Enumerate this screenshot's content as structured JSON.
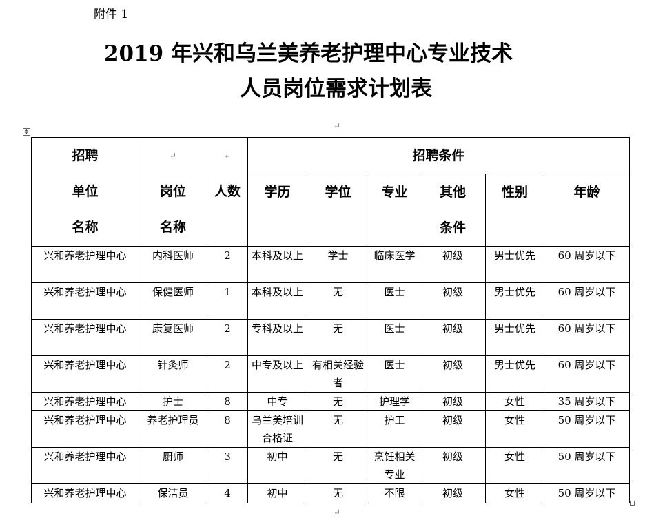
{
  "attachment_label": "附件 1",
  "title_line1": "2019 年兴和乌兰美养老护理中心专业技术",
  "title_line2": "人员岗位需求计划表",
  "header": {
    "unit": [
      "招聘",
      "单位",
      "名称"
    ],
    "position": [
      "岗位",
      "名称"
    ],
    "count": "人数",
    "conditions": "招聘条件",
    "education": "学历",
    "degree": "学位",
    "major": "专业",
    "other": [
      "其他",
      "条件"
    ],
    "gender": "性别",
    "age": "年龄"
  },
  "rows": [
    [
      "兴和养老护理中心",
      "内科医师",
      "2",
      "本科及以上",
      "学士",
      "临床医学",
      "初级",
      "男士优先",
      "60 周岁以下"
    ],
    [
      "兴和养老护理中心",
      "保健医师",
      "1",
      "本科及以上",
      "无",
      "医士",
      "初级",
      "男士优先",
      "60 周岁以下"
    ],
    [
      "兴和养老护理中心",
      "康复医师",
      "2",
      "专科及以上",
      "无",
      "医士",
      "初级",
      "男士优先",
      "60 周岁以下"
    ],
    [
      "兴和养老护理中心",
      "针灸师",
      "2",
      "中专及以上",
      "有相关经验者",
      "医士",
      "初级",
      "男士优先",
      "60 周岁以下"
    ],
    [
      "兴和养老护理中心",
      "护士",
      "8",
      "中专",
      "无",
      "护理学",
      "初级",
      "女性",
      "35 周岁以下"
    ],
    [
      "兴和养老护理中心",
      "养老护理员",
      "8",
      "乌兰美培训合格证",
      "无",
      "护工",
      "初级",
      "女性",
      "50 周岁以下"
    ],
    [
      "兴和养老护理中心",
      "厨师",
      "3",
      "初中",
      "无",
      "烹饪相关专业",
      "初级",
      "女性",
      "50 周岁以下"
    ],
    [
      "兴和养老护理中心",
      "保洁员",
      "4",
      "初中",
      "无",
      "不限",
      "初级",
      "女性",
      "50 周岁以下"
    ]
  ]
}
